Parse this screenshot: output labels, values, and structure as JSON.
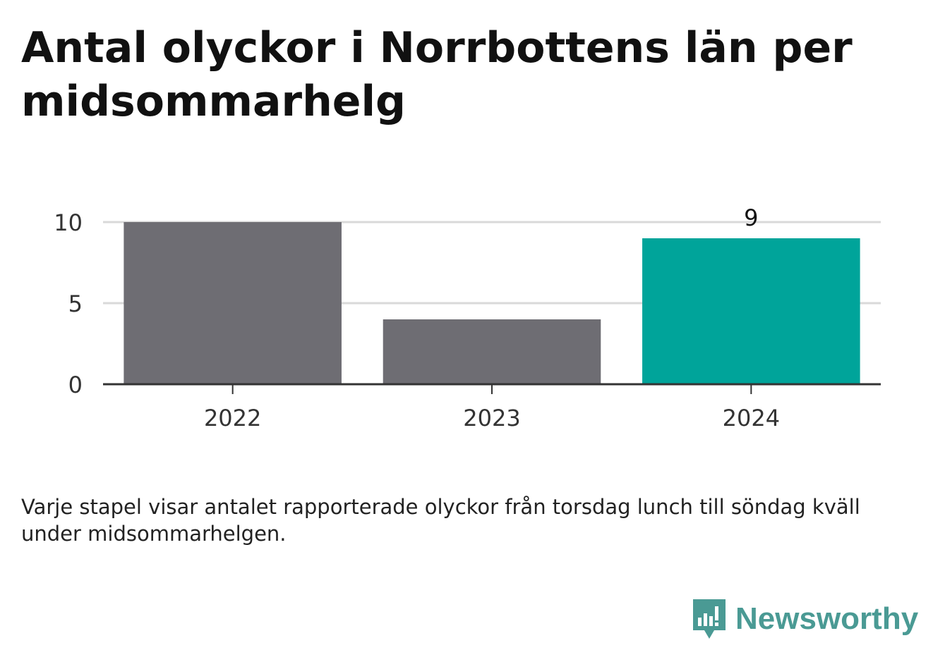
{
  "chart_data": {
    "type": "bar",
    "title": "Antal olyckor i Norrbottens län per midsommarhelg",
    "categories": [
      "2022",
      "2023",
      "2024"
    ],
    "values": [
      10,
      4,
      9
    ],
    "highlight_index": 2,
    "data_labels": [
      "",
      "",
      "9"
    ],
    "ylim": [
      0,
      10
    ],
    "yticks": [
      0,
      5,
      10
    ],
    "grid": true,
    "colors": {
      "default": "#6e6d73",
      "highlight": "#00a49a",
      "grid": "#d9d9d9",
      "axis": "#333333"
    }
  },
  "note": "Varje stapel visar antalet rapporterade olyckor från torsdag lunch till söndag kväll under midsommarhelgen.",
  "brand": {
    "name": "Newsworthy",
    "icon": "newsworthy-logo-icon",
    "color": "#4a9a94"
  }
}
